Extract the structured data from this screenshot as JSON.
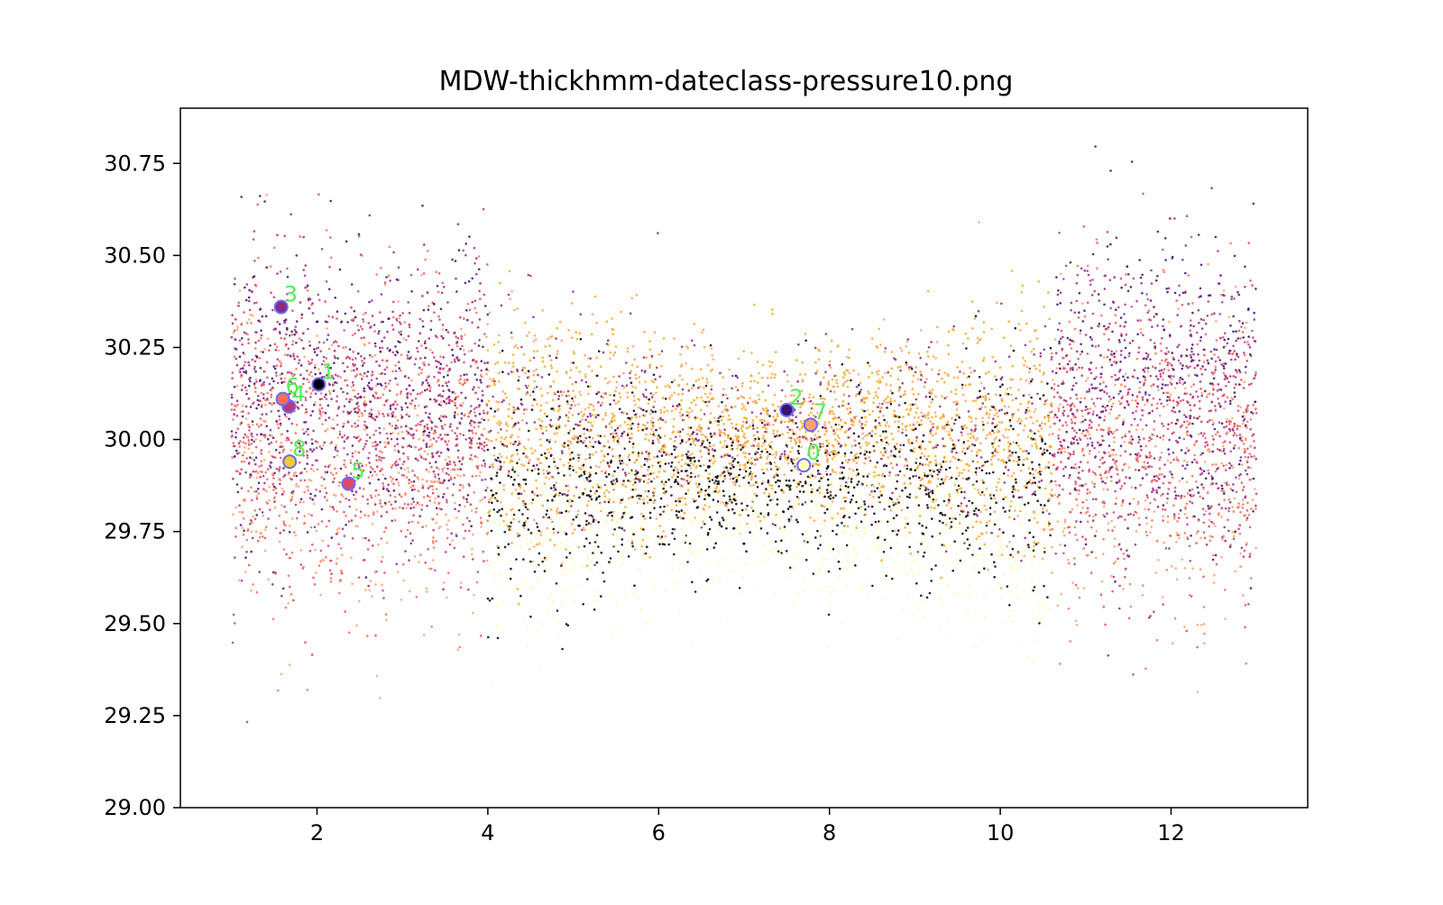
{
  "chart_data": {
    "type": "scatter",
    "title": "MDW-thickhmm-dateclass-pressure10.png",
    "xlabel": "",
    "ylabel": "",
    "xlim": [
      0.4,
      13.6
    ],
    "ylim": [
      29.0,
      30.9
    ],
    "x_ticks": [
      2,
      4,
      6,
      8,
      10,
      12
    ],
    "x_tick_labels": [
      "2",
      "4",
      "6",
      "8",
      "10",
      "12"
    ],
    "y_ticks": [
      29.0,
      29.25,
      29.5,
      29.75,
      30.0,
      30.25,
      30.5,
      30.75
    ],
    "y_tick_labels": [
      "29.00",
      "29.25",
      "29.50",
      "29.75",
      "30.00",
      "30.25",
      "30.50",
      "30.75"
    ],
    "grid": false,
    "legend": "none",
    "background_cloud": {
      "description_colors": [
        "#000004",
        "#3b0f70",
        "#8c2981",
        "#b73779",
        "#de4968",
        "#f7705c",
        "#fea16e",
        "#f9a825",
        "#fcfdbf"
      ],
      "color_scale": "inferno",
      "x_range": [
        1,
        13
      ]
    },
    "centroids": [
      {
        "label": "0",
        "x": 7.7,
        "y": 29.93,
        "color": "#fcfdbf"
      },
      {
        "label": "1",
        "x": 2.02,
        "y": 30.15,
        "color": "#000004"
      },
      {
        "label": "2",
        "x": 7.5,
        "y": 30.08,
        "color": "#3b0f70"
      },
      {
        "label": "3",
        "x": 1.58,
        "y": 30.36,
        "color": "#8c2981"
      },
      {
        "label": "4",
        "x": 1.67,
        "y": 30.09,
        "color": "#b73779"
      },
      {
        "label": "5",
        "x": 2.37,
        "y": 29.88,
        "color": "#de4968"
      },
      {
        "label": "6",
        "x": 1.6,
        "y": 30.11,
        "color": "#f7705c"
      },
      {
        "label": "7",
        "x": 7.78,
        "y": 30.04,
        "color": "#fea16e"
      },
      {
        "label": "8",
        "x": 1.68,
        "y": 29.94,
        "color": "#f9c932"
      }
    ],
    "centroid_edge_color": "#6a6aff",
    "centroid_label_color": "#55ee55"
  }
}
